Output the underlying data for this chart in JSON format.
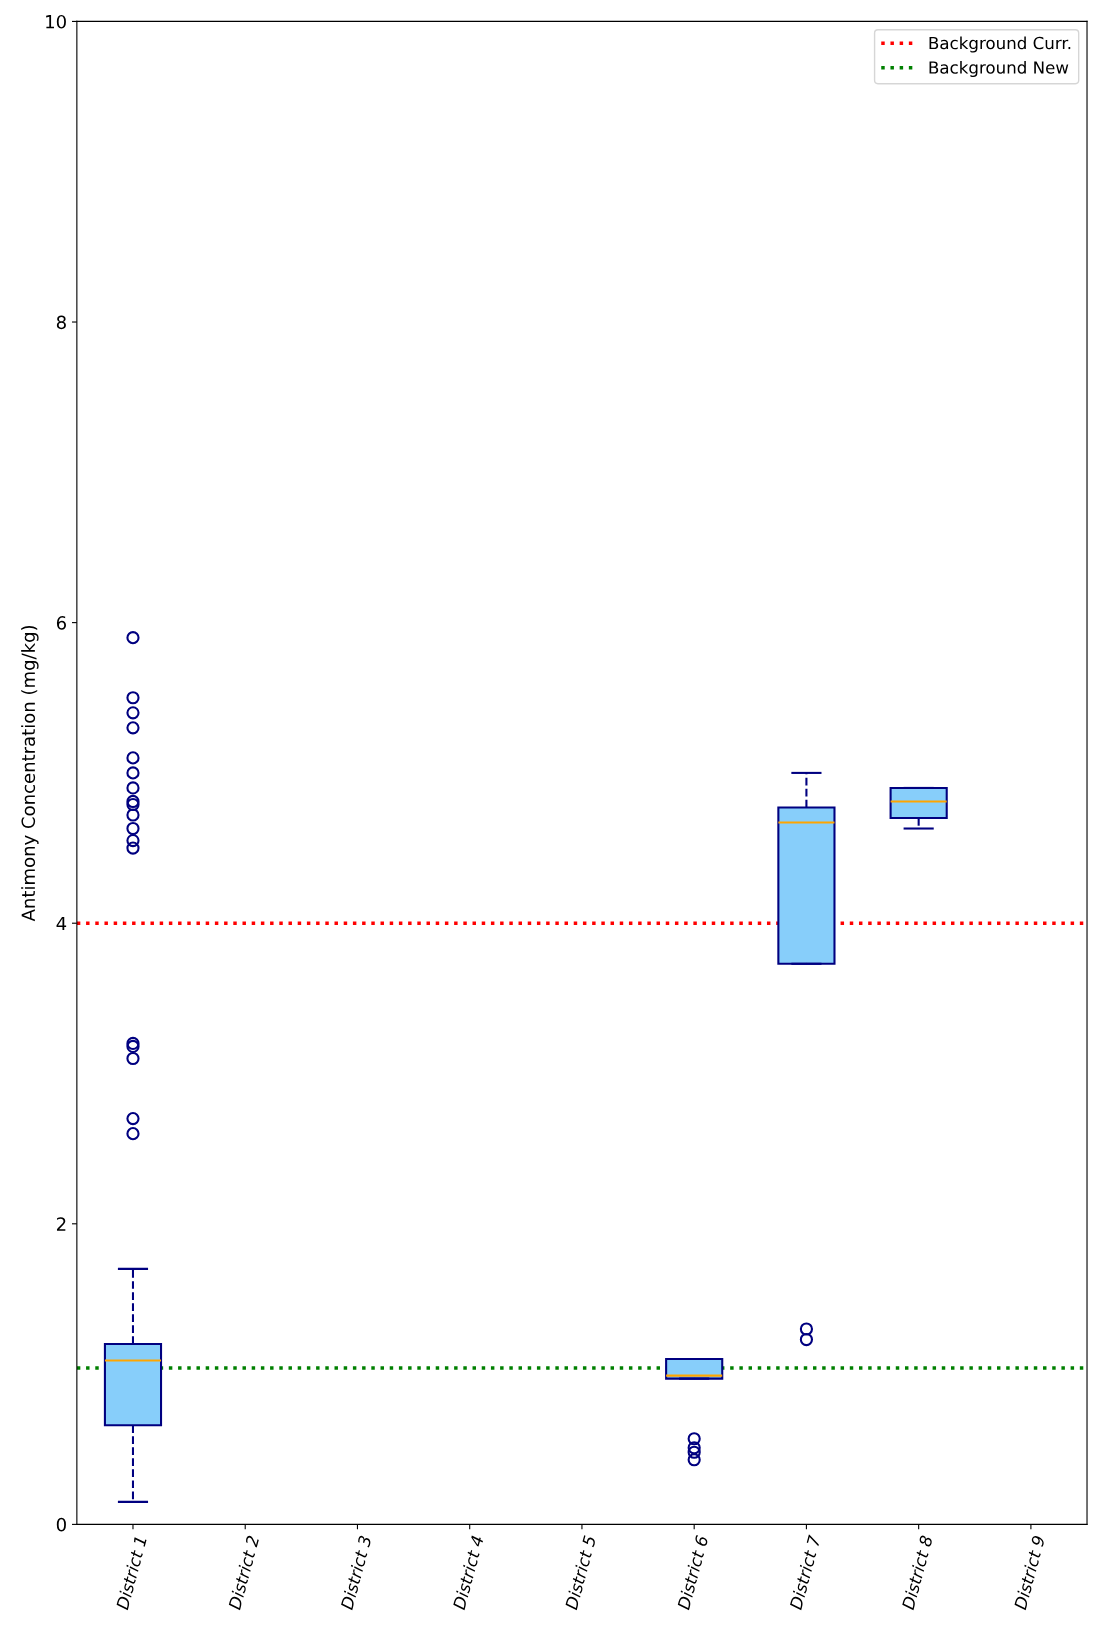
{
  "chart_data": {
    "type": "box",
    "ylabel": "Antimony Concentration (mg/kg)",
    "categories": [
      "District 1",
      "District 2",
      "District 3",
      "District 4",
      "District 5",
      "District 6",
      "District 7",
      "District 8",
      "District 9"
    ],
    "series": [
      {
        "color": "#87cefa",
        "boxes": [
          {
            "low": 0.15,
            "q1": 0.66,
            "median": 1.09,
            "q3": 1.2,
            "high": 1.7,
            "outliers": [
              5.9,
              5.5,
              5.4,
              5.3,
              5.1,
              5.0,
              4.9,
              4.81,
              4.79,
              4.72,
              4.63,
              4.55,
              4.5,
              3.2,
              3.18,
              3.1,
              2.7,
              2.6
            ]
          },
          null,
          null,
          null,
          null,
          {
            "low": 0.97,
            "q1": 0.97,
            "median": 0.99,
            "q3": 1.1,
            "high": 1.1,
            "outliers": [
              0.57,
              0.51,
              0.48,
              0.43
            ]
          },
          {
            "low": 3.73,
            "q1": 3.73,
            "median": 4.67,
            "q3": 4.77,
            "high": 5.0,
            "outliers": [
              1.3,
              1.23
            ]
          },
          {
            "low": 4.63,
            "q1": 4.7,
            "median": 4.81,
            "q3": 4.9,
            "high": 4.9
          },
          null
        ]
      }
    ],
    "ylim": [
      0,
      10
    ],
    "yticks": [
      0,
      2,
      4,
      6,
      8,
      10
    ],
    "ref_lines": [
      {
        "axis": "y",
        "value": 4.0,
        "label": "Background Curr.",
        "color": "#ff0000",
        "line_style": "dotted"
      },
      {
        "axis": "y",
        "value": 1.04,
        "label": "Background New",
        "color": "#008000",
        "line_style": "dotted"
      }
    ],
    "legend": "top right",
    "grid": false
  }
}
